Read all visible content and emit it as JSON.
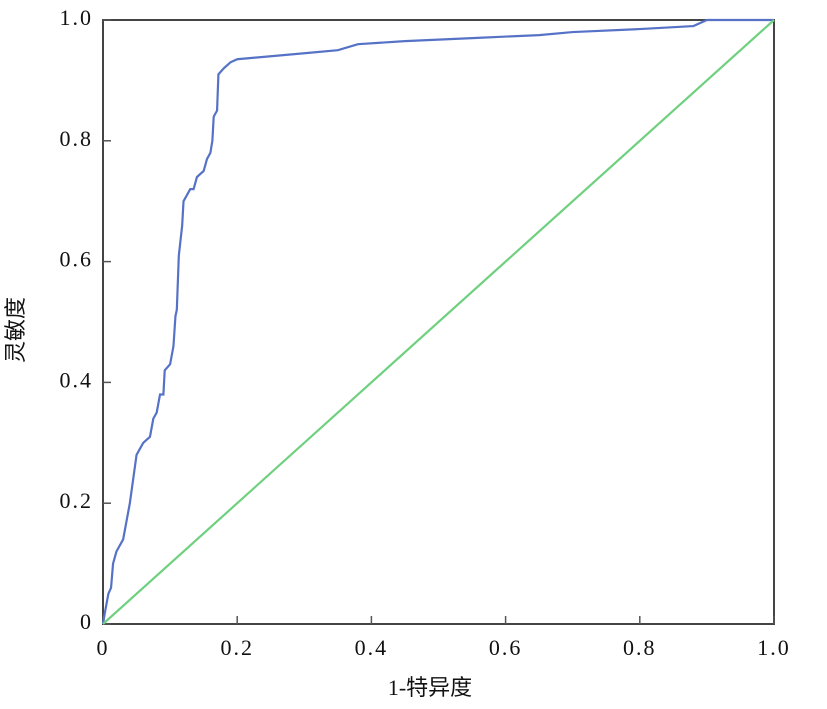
{
  "chart_data": {
    "type": "line",
    "x_label": "1-特异度",
    "y_label": "灵敏度",
    "xlim": [
      0,
      1
    ],
    "ylim": [
      0,
      1
    ],
    "xticks": [
      0,
      0.2,
      0.4,
      0.6,
      0.8,
      {
        "value": 1,
        "label": "1.0"
      }
    ],
    "yticks": [
      0,
      0.2,
      0.4,
      0.6,
      0.8,
      {
        "value": 1,
        "label": "1.0"
      }
    ],
    "series": [
      {
        "color": "#5672c6",
        "x": [
          0,
          0.003,
          0.008,
          0.012,
          0.015,
          0.02,
          0.03,
          0.035,
          0.04,
          0.045,
          0.05,
          0.055,
          0.06,
          0.07,
          0.075,
          0.08,
          0.085,
          0.09,
          0.092,
          0.1,
          0.105,
          0.108,
          0.11,
          0.113,
          0.118,
          0.12,
          0.125,
          0.13,
          0.135,
          0.14,
          0.15,
          0.155,
          0.16,
          0.163,
          0.165,
          0.17,
          0.172,
          0.18,
          0.19,
          0.2,
          0.25,
          0.3,
          0.35,
          0.38,
          0.45,
          0.55,
          0.65,
          0.7,
          0.8,
          0.88,
          0.9,
          1
        ],
        "values": [
          0,
          0.02,
          0.05,
          0.06,
          0.1,
          0.12,
          0.14,
          0.17,
          0.2,
          0.24,
          0.28,
          0.29,
          0.3,
          0.31,
          0.34,
          0.35,
          0.38,
          0.38,
          0.42,
          0.43,
          0.46,
          0.51,
          0.52,
          0.61,
          0.66,
          0.7,
          0.71,
          0.72,
          0.72,
          0.74,
          0.75,
          0.77,
          0.78,
          0.8,
          0.84,
          0.85,
          0.91,
          0.92,
          0.93,
          0.935,
          0.94,
          0.945,
          0.95,
          0.96,
          0.965,
          0.97,
          0.975,
          0.98,
          0.985,
          0.99,
          1,
          1
        ]
      },
      {
        "color": "#6fd07f",
        "x": [
          0,
          1
        ],
        "values": [
          0,
          1
        ]
      }
    ]
  }
}
